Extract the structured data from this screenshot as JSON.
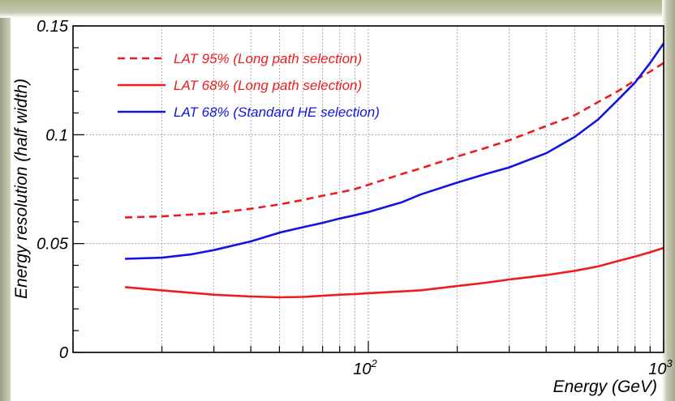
{
  "chart_data": {
    "type": "line",
    "title": "",
    "xlabel": "Energy (GeV)",
    "ylabel": "Energy resolution (half width)",
    "xscale": "log",
    "xlim": [
      10,
      1000
    ],
    "ylim": [
      0,
      0.15
    ],
    "grid": true,
    "legend_position": "top-left",
    "y_ticks": [
      {
        "value": 0,
        "label": "0"
      },
      {
        "value": 0.05,
        "label": "0.05"
      },
      {
        "value": 0.1,
        "label": "0.1"
      },
      {
        "value": 0.15,
        "label": "0.15"
      }
    ],
    "x_ticks_major": [
      {
        "value": 100,
        "base": "10",
        "exp": "2"
      },
      {
        "value": 1000,
        "base": "10",
        "exp": "3"
      }
    ],
    "series": [
      {
        "name": "LAT 95% (Long path selection)",
        "color": "#ee1c1c",
        "dash": "dashed",
        "x": [
          15,
          20,
          30,
          40,
          50,
          60,
          70,
          80,
          90,
          100,
          130,
          150,
          200,
          250,
          300,
          400,
          500,
          600,
          700,
          800,
          900,
          1000
        ],
        "y": [
          0.062,
          0.0625,
          0.064,
          0.066,
          0.068,
          0.07,
          0.072,
          0.0735,
          0.075,
          0.077,
          0.082,
          0.0845,
          0.09,
          0.094,
          0.0975,
          0.104,
          0.109,
          0.115,
          0.12,
          0.125,
          0.129,
          0.133
        ]
      },
      {
        "name": "LAT 68% (Long path selection)",
        "color": "#ee1c1c",
        "dash": "solid",
        "x": [
          15,
          20,
          30,
          40,
          50,
          60,
          70,
          80,
          90,
          100,
          150,
          200,
          250,
          300,
          400,
          500,
          600,
          700,
          800,
          900,
          1000
        ],
        "y": [
          0.03,
          0.0285,
          0.0265,
          0.0257,
          0.0253,
          0.0255,
          0.026,
          0.0265,
          0.0268,
          0.0272,
          0.0285,
          0.0305,
          0.032,
          0.0335,
          0.0355,
          0.0375,
          0.0395,
          0.042,
          0.044,
          0.046,
          0.048
        ]
      },
      {
        "name": "LAT 68% (Standard HE selection)",
        "color": "#1414e0",
        "dash": "solid",
        "x": [
          15,
          20,
          25,
          30,
          40,
          50,
          60,
          70,
          80,
          90,
          100,
          130,
          150,
          200,
          250,
          300,
          400,
          500,
          600,
          700,
          800,
          900,
          1000
        ],
        "y": [
          0.043,
          0.0435,
          0.045,
          0.047,
          0.051,
          0.055,
          0.0575,
          0.0595,
          0.0615,
          0.063,
          0.0645,
          0.069,
          0.0725,
          0.078,
          0.082,
          0.085,
          0.0915,
          0.099,
          0.107,
          0.116,
          0.124,
          0.133,
          0.142
        ]
      }
    ]
  }
}
